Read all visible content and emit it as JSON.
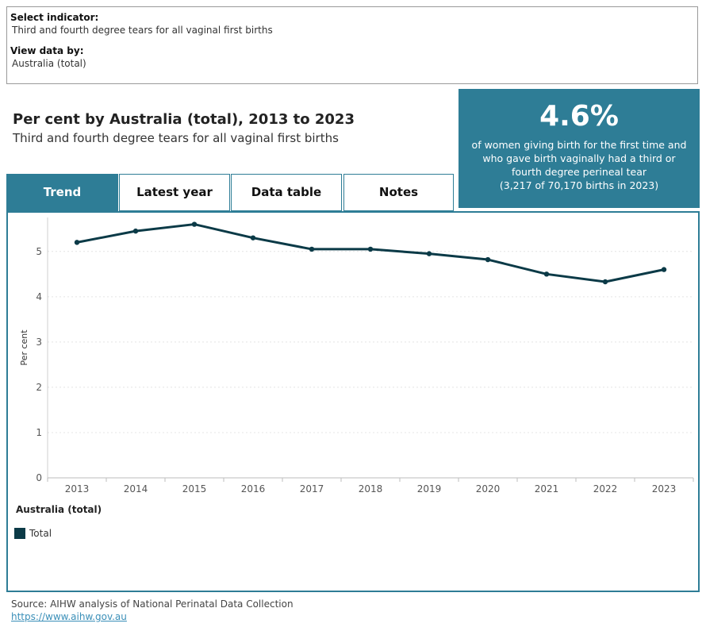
{
  "filters": {
    "indicator_label": "Select indicator:",
    "indicator_value": "Third and fourth degree tears for all vaginal first births",
    "view_label": "View data by:",
    "view_value": "Australia (total)"
  },
  "heading": {
    "title": "Per cent by Australia (total), 2013 to 2023",
    "subtitle": "Third and fourth degree tears for all vaginal first births"
  },
  "kpi": {
    "value": "4.6%",
    "description": "of women giving birth for the first time and who gave birth vaginally had a third or fourth degree perineal tear",
    "note": "(3,217 of 70,170 births in 2023)"
  },
  "tabs": [
    {
      "label": "Trend",
      "active": true
    },
    {
      "label": "Latest year",
      "active": false
    },
    {
      "label": "Data table",
      "active": false
    },
    {
      "label": "Notes",
      "active": false
    }
  ],
  "legend": {
    "title": "Australia (total)",
    "items": [
      {
        "label": "Total",
        "color": "#0b3a47"
      }
    ]
  },
  "footer": {
    "source": "Source: AIHW analysis of National Perinatal Data Collection",
    "link": "https://www.aihw.gov.au"
  },
  "colors": {
    "accent": "#2e7d96",
    "line": "#0b3a47"
  },
  "chart_data": {
    "type": "line",
    "x": [
      "2013",
      "2014",
      "2015",
      "2016",
      "2017",
      "2018",
      "2019",
      "2020",
      "2021",
      "2022",
      "2023"
    ],
    "series": [
      {
        "name": "Total",
        "values": [
          5.2,
          5.45,
          5.6,
          5.3,
          5.05,
          5.05,
          4.95,
          4.82,
          4.5,
          4.33,
          4.6
        ]
      }
    ],
    "ylabel": "Per cent",
    "xlabel": "",
    "ylim": [
      0,
      5.75
    ],
    "yticks": [
      "0",
      "1",
      "2",
      "3",
      "4",
      "5"
    ],
    "grid": true
  }
}
